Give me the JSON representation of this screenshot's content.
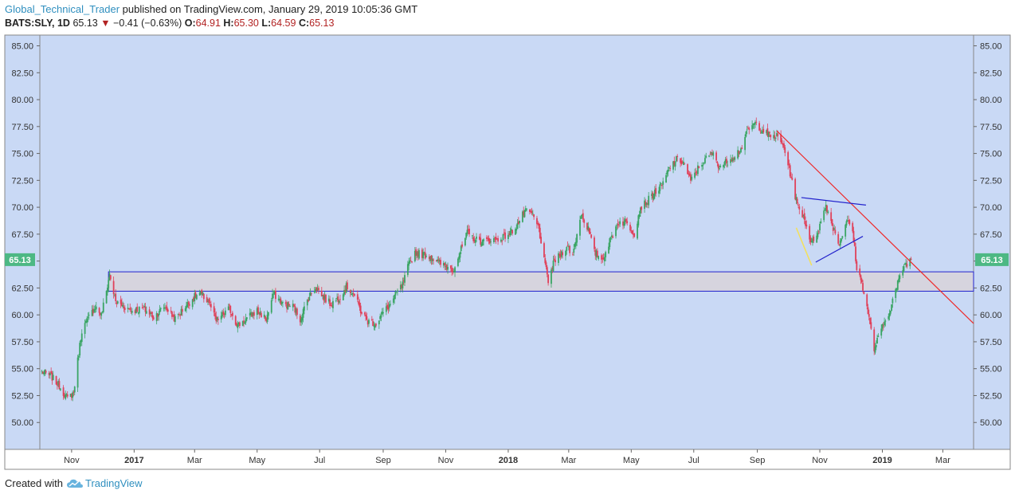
{
  "header": {
    "author": "Global_Technical_Trader",
    "published_text": "published on TradingView.com, January 29, 2019 10:05:36 GMT",
    "symbol": "BATS:SLY, 1D",
    "last": "65.13",
    "change_arrow": "▼",
    "change": "−0.41 (−0.63%)",
    "open_label": "O:",
    "open": "64.91",
    "high_label": "H:",
    "high": "65.30",
    "low_label": "L:",
    "low": "64.59",
    "close_label": "C:",
    "close": "65.13"
  },
  "footer": {
    "created_with": "Created with",
    "brand": "TradingView"
  },
  "colors": {
    "plot_bg": "#c9d9f5",
    "up": "#3aa564",
    "down": "#e0415a",
    "price_tag": "#4db884",
    "zone_fill": "#d6d4de",
    "zone_line": "#2222cc",
    "trend_red": "#ee2a2a",
    "triangle": "#2222cc",
    "yellow": "#f2e060"
  },
  "chart_data": {
    "type": "candlestick",
    "ylim": [
      47.5,
      86.0
    ],
    "yticks": [
      50.0,
      52.5,
      55.0,
      57.5,
      60.0,
      62.5,
      65.0,
      67.5,
      70.0,
      72.5,
      75.0,
      77.5,
      80.0,
      82.5,
      85.0
    ],
    "ytick_labels": [
      "50.00",
      "52.50",
      "55.00",
      "57.50",
      "60.00",
      "62.50",
      "65.00",
      "67.50",
      "70.00",
      "72.50",
      "75.00",
      "77.50",
      "80.00",
      "82.50",
      "85.00"
    ],
    "x_start": "2016-10-01",
    "x_end": "2019-03-31",
    "xticks": [
      {
        "date": "2016-11-01",
        "label": "Nov",
        "bold": false
      },
      {
        "date": "2017-01-01",
        "label": "2017",
        "bold": true
      },
      {
        "date": "2017-03-01",
        "label": "Mar",
        "bold": false
      },
      {
        "date": "2017-05-01",
        "label": "May",
        "bold": false
      },
      {
        "date": "2017-07-01",
        "label": "Jul",
        "bold": false
      },
      {
        "date": "2017-09-01",
        "label": "Sep",
        "bold": false
      },
      {
        "date": "2017-11-01",
        "label": "Nov",
        "bold": false
      },
      {
        "date": "2018-01-01",
        "label": "2018",
        "bold": true
      },
      {
        "date": "2018-03-01",
        "label": "Mar",
        "bold": false
      },
      {
        "date": "2018-05-01",
        "label": "May",
        "bold": false
      },
      {
        "date": "2018-07-01",
        "label": "Jul",
        "bold": false
      },
      {
        "date": "2018-09-01",
        "label": "Sep",
        "bold": false
      },
      {
        "date": "2018-11-01",
        "label": "Nov",
        "bold": false
      },
      {
        "date": "2019-01-01",
        "label": "2019",
        "bold": true
      },
      {
        "date": "2019-03-01",
        "label": "Mar",
        "bold": false
      }
    ],
    "last_price": 65.13,
    "last_price_label": "65.13",
    "close_path": [
      [
        "2016-10-01",
        54.8
      ],
      [
        "2016-10-12",
        54.3
      ],
      [
        "2016-10-20",
        53.4
      ],
      [
        "2016-10-28",
        52.2
      ],
      [
        "2016-11-03",
        52.8
      ],
      [
        "2016-11-08",
        56.5
      ],
      [
        "2016-11-11",
        58.6
      ],
      [
        "2016-11-17",
        59.6
      ],
      [
        "2016-11-24",
        60.8
      ],
      [
        "2016-11-30",
        60.0
      ],
      [
        "2016-12-05",
        62.2
      ],
      [
        "2016-12-08",
        63.8
      ],
      [
        "2016-12-14",
        61.2
      ],
      [
        "2016-12-22",
        60.8
      ],
      [
        "2016-12-30",
        60.4
      ],
      [
        "2017-01-10",
        60.6
      ],
      [
        "2017-01-20",
        59.8
      ],
      [
        "2017-01-31",
        60.8
      ],
      [
        "2017-02-10",
        59.6
      ],
      [
        "2017-02-20",
        60.8
      ],
      [
        "2017-02-28",
        61.6
      ],
      [
        "2017-03-06",
        62.0
      ],
      [
        "2017-03-15",
        61.2
      ],
      [
        "2017-03-22",
        59.4
      ],
      [
        "2017-04-04",
        60.6
      ],
      [
        "2017-04-12",
        59.0
      ],
      [
        "2017-04-20",
        59.6
      ],
      [
        "2017-05-01",
        60.4
      ],
      [
        "2017-05-10",
        59.6
      ],
      [
        "2017-05-17",
        62.0
      ],
      [
        "2017-05-26",
        61.0
      ],
      [
        "2017-06-05",
        60.8
      ],
      [
        "2017-06-12",
        59.6
      ],
      [
        "2017-06-20",
        61.6
      ],
      [
        "2017-06-27",
        62.6
      ],
      [
        "2017-07-05",
        61.6
      ],
      [
        "2017-07-12",
        61.0
      ],
      [
        "2017-07-20",
        61.6
      ],
      [
        "2017-07-27",
        62.6
      ],
      [
        "2017-08-03",
        62.0
      ],
      [
        "2017-08-10",
        60.4
      ],
      [
        "2017-08-17",
        59.4
      ],
      [
        "2017-08-25",
        59.2
      ],
      [
        "2017-09-01",
        60.2
      ],
      [
        "2017-09-08",
        61.0
      ],
      [
        "2017-09-14",
        62.0
      ],
      [
        "2017-09-20",
        62.8
      ],
      [
        "2017-09-25",
        64.4
      ],
      [
        "2017-10-02",
        65.8
      ],
      [
        "2017-10-10",
        65.6
      ],
      [
        "2017-10-18",
        65.4
      ],
      [
        "2017-10-26",
        64.8
      ],
      [
        "2017-11-03",
        64.4
      ],
      [
        "2017-11-08",
        64.2
      ],
      [
        "2017-11-15",
        65.8
      ],
      [
        "2017-11-22",
        67.6
      ],
      [
        "2017-11-30",
        67.0
      ],
      [
        "2017-12-07",
        66.8
      ],
      [
        "2017-12-15",
        67.0
      ],
      [
        "2017-12-22",
        67.0
      ],
      [
        "2018-01-03",
        67.6
      ],
      [
        "2018-01-10",
        68.4
      ],
      [
        "2018-01-17",
        69.6
      ],
      [
        "2018-01-24",
        69.4
      ],
      [
        "2018-01-31",
        68.0
      ],
      [
        "2018-02-05",
        65.0
      ],
      [
        "2018-02-09",
        63.2
      ],
      [
        "2018-02-15",
        65.0
      ],
      [
        "2018-02-21",
        65.6
      ],
      [
        "2018-02-27",
        66.4
      ],
      [
        "2018-03-05",
        65.6
      ],
      [
        "2018-03-13",
        69.4
      ],
      [
        "2018-03-20",
        68.0
      ],
      [
        "2018-03-26",
        65.8
      ],
      [
        "2018-04-03",
        65.2
      ],
      [
        "2018-04-10",
        66.8
      ],
      [
        "2018-04-18",
        68.6
      ],
      [
        "2018-04-26",
        68.6
      ],
      [
        "2018-05-04",
        67.6
      ],
      [
        "2018-05-10",
        70.0
      ],
      [
        "2018-05-17",
        70.6
      ],
      [
        "2018-05-24",
        71.4
      ],
      [
        "2018-05-31",
        72.0
      ],
      [
        "2018-06-07",
        73.6
      ],
      [
        "2018-06-14",
        74.4
      ],
      [
        "2018-06-21",
        74.2
      ],
      [
        "2018-06-28",
        72.4
      ],
      [
        "2018-07-05",
        73.6
      ],
      [
        "2018-07-12",
        74.4
      ],
      [
        "2018-07-19",
        75.0
      ],
      [
        "2018-07-26",
        73.8
      ],
      [
        "2018-08-02",
        74.2
      ],
      [
        "2018-08-09",
        74.8
      ],
      [
        "2018-08-16",
        75.4
      ],
      [
        "2018-08-23",
        77.2
      ],
      [
        "2018-08-30",
        77.8
      ],
      [
        "2018-09-06",
        77.2
      ],
      [
        "2018-09-13",
        76.6
      ],
      [
        "2018-09-20",
        76.6
      ],
      [
        "2018-09-27",
        75.6
      ],
      [
        "2018-10-04",
        72.8
      ],
      [
        "2018-10-10",
        70.2
      ],
      [
        "2018-10-16",
        69.2
      ],
      [
        "2018-10-24",
        66.6
      ],
      [
        "2018-10-31",
        68.0
      ],
      [
        "2018-11-07",
        70.2
      ],
      [
        "2018-11-13",
        68.4
      ],
      [
        "2018-11-20",
        66.6
      ],
      [
        "2018-11-27",
        68.8
      ],
      [
        "2018-12-03",
        67.8
      ],
      [
        "2018-12-07",
        64.4
      ],
      [
        "2018-12-13",
        62.6
      ],
      [
        "2018-12-18",
        60.2
      ],
      [
        "2018-12-24",
        56.8
      ],
      [
        "2018-12-31",
        58.6
      ],
      [
        "2019-01-08",
        60.4
      ],
      [
        "2019-01-15",
        62.6
      ],
      [
        "2019-01-22",
        64.6
      ],
      [
        "2019-01-29",
        65.13
      ]
    ],
    "support_zone": {
      "top": 64.0,
      "bottom": 62.2,
      "start": "2016-12-07",
      "end": "2019-03-31"
    },
    "trendline": {
      "p1": [
        "2018-09-20",
        77.1
      ],
      "p2": [
        "2019-03-31",
        59.2
      ]
    },
    "triangle": {
      "upper": [
        [
          "2018-10-14",
          70.9
        ],
        [
          "2018-12-16",
          70.2
        ]
      ],
      "lower": [
        [
          "2018-10-28",
          64.9
        ],
        [
          "2018-12-13",
          67.3
        ]
      ]
    },
    "yellow_line": [
      [
        "2018-10-09",
        68.1
      ],
      [
        "2018-10-24",
        64.6
      ]
    ]
  }
}
